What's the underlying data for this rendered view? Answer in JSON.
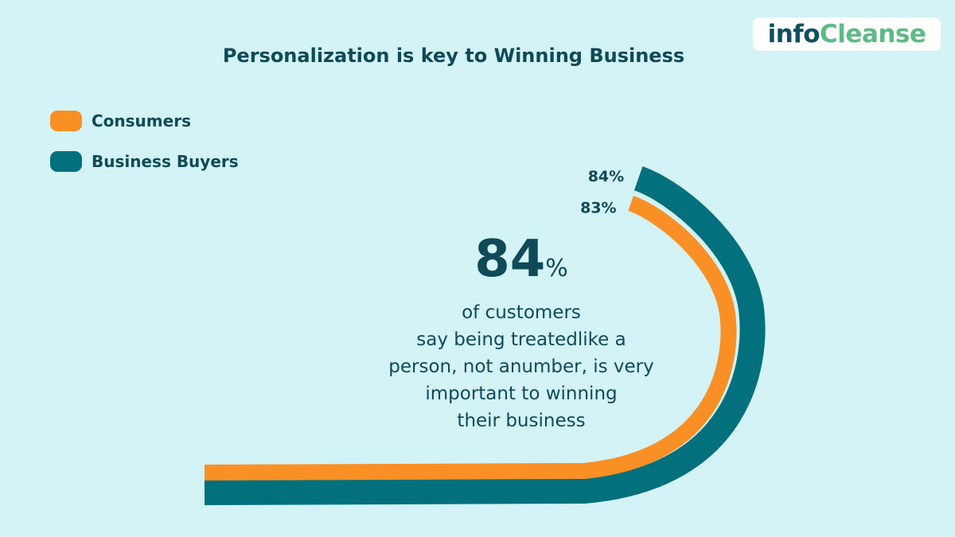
{
  "logo": {
    "part1": "info",
    "part2": "Cleanse"
  },
  "title": "Personalization is key to Winning Business",
  "legend": [
    {
      "label": "Consumers",
      "color": "#fa9025"
    },
    {
      "label": "Business Buyers",
      "color": "#02707d"
    }
  ],
  "center_text": {
    "stat": "84",
    "stat_symbol": "%",
    "lines": [
      "of customers",
      "say being treatedlike a",
      "person, not anumber, is very",
      "important to winning",
      "their business"
    ]
  },
  "chart_data": {
    "type": "bar",
    "categories": [
      "Consumers",
      "Business Buyers"
    ],
    "series": [
      {
        "values": [
          83,
          84
        ]
      }
    ],
    "data_labels": [
      "83%",
      "84%"
    ],
    "unit": "%",
    "colors": [
      "#fa9025",
      "#02707d"
    ],
    "ylim": [
      0,
      100
    ]
  }
}
